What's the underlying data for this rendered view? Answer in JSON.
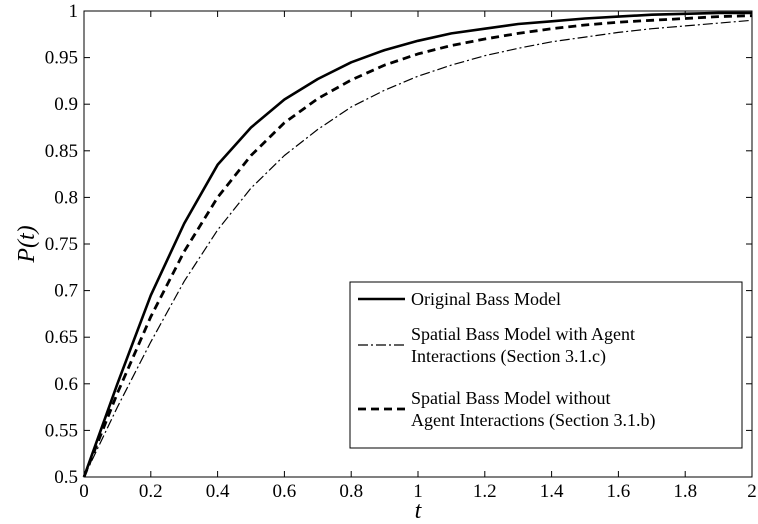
{
  "chart_data": {
    "type": "line",
    "xlabel": "t",
    "ylabel": "P(t)",
    "xlim": [
      0,
      2
    ],
    "ylim": [
      0.5,
      1
    ],
    "x_ticks": [
      "0",
      "0.2",
      "0.4",
      "0.6",
      "0.8",
      "1",
      "1.2",
      "1.4",
      "1.6",
      "1.8",
      "2"
    ],
    "y_ticks": [
      "0.5",
      "0.55",
      "0.6",
      "0.65",
      "0.7",
      "0.75",
      "0.8",
      "0.85",
      "0.9",
      "0.95",
      "1"
    ],
    "grid": false,
    "legend_position": "bottom-right",
    "x": [
      0,
      0.1,
      0.2,
      0.3,
      0.4,
      0.5,
      0.6,
      0.7,
      0.8,
      0.9,
      1.0,
      1.1,
      1.2,
      1.3,
      1.4,
      1.5,
      1.6,
      1.7,
      1.8,
      1.9,
      2.0
    ],
    "series": [
      {
        "name": "Original Bass Model",
        "style": "solid",
        "values": [
          0.5,
          0.6,
          0.695,
          0.772,
          0.835,
          0.875,
          0.905,
          0.927,
          0.945,
          0.958,
          0.968,
          0.976,
          0.981,
          0.986,
          0.989,
          0.992,
          0.994,
          0.996,
          0.997,
          0.998,
          0.998
        ]
      },
      {
        "name": "Spatial Bass Model with Agent Interactions (Section 3.1.c)",
        "style": "dashdot",
        "values": [
          0.5,
          0.575,
          0.645,
          0.71,
          0.765,
          0.81,
          0.845,
          0.873,
          0.897,
          0.915,
          0.93,
          0.942,
          0.952,
          0.96,
          0.967,
          0.972,
          0.977,
          0.981,
          0.984,
          0.987,
          0.99
        ]
      },
      {
        "name": "Spatial Bass Model without Agent Interactions (Section 3.1.b)",
        "style": "dashed",
        "values": [
          0.5,
          0.59,
          0.672,
          0.742,
          0.8,
          0.845,
          0.88,
          0.906,
          0.926,
          0.942,
          0.954,
          0.963,
          0.97,
          0.976,
          0.981,
          0.985,
          0.988,
          0.99,
          0.992,
          0.994,
          0.995
        ]
      }
    ],
    "legend_lines": [
      [
        "Original Bass Model"
      ],
      [
        "Spatial Bass Model with Agent",
        "Interactions (Section 3.1.c)"
      ],
      [
        "Spatial Bass Model without",
        "Agent Interactions (Section 3.1.b)"
      ]
    ]
  }
}
